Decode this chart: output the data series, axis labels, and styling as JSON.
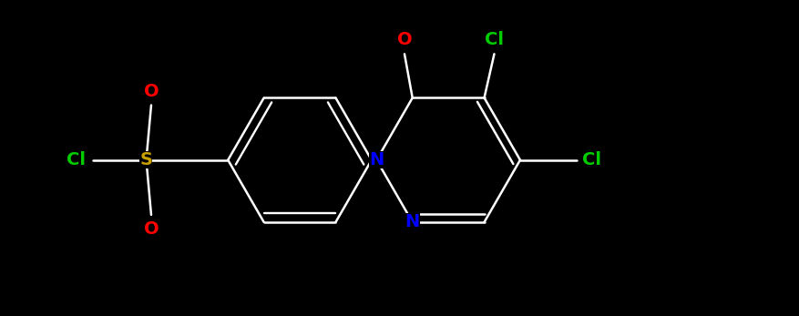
{
  "background_color": "#000000",
  "bond_color": "#ffffff",
  "atom_colors": {
    "O": "#ff0000",
    "S": "#c8a000",
    "Cl": "#00cc00",
    "N": "#0000ff",
    "C": "#ffffff"
  },
  "figsize": [
    8.77,
    3.47
  ],
  "dpi": 100,
  "lw": 1.8,
  "fontsize": 14
}
